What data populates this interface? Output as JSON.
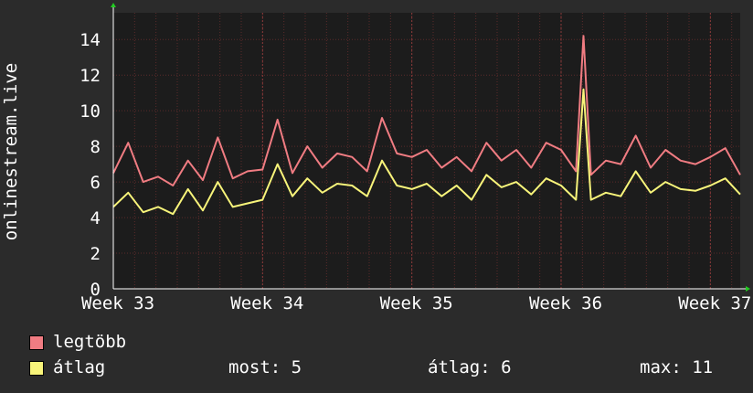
{
  "chart_data": {
    "type": "line",
    "ylabel": "onlinestream.live",
    "ylim": [
      0,
      15.5
    ],
    "yticks": [
      0,
      2,
      4,
      6,
      8,
      10,
      12,
      14
    ],
    "xlim": [
      33,
      37.2
    ],
    "xticks": [
      {
        "label": "Week 33",
        "value": 33
      },
      {
        "label": "Week 34",
        "value": 34
      },
      {
        "label": "Week 35",
        "value": 35
      },
      {
        "label": "Week 36",
        "value": 36
      },
      {
        "label": "Week 37",
        "value": 37
      }
    ],
    "grid": true,
    "background": "#1c1c1c",
    "grid_color": "#5a2a2a",
    "series": [
      {
        "name": "legtöbb",
        "color": "#f07c82",
        "x": [
          33.0,
          33.1,
          33.2,
          33.3,
          33.4,
          33.5,
          33.6,
          33.7,
          33.8,
          33.9,
          34.0,
          34.1,
          34.2,
          34.3,
          34.4,
          34.5,
          34.6,
          34.7,
          34.8,
          34.9,
          35.0,
          35.1,
          35.2,
          35.3,
          35.4,
          35.5,
          35.6,
          35.7,
          35.8,
          35.9,
          36.0,
          36.1,
          36.15,
          36.2,
          36.3,
          36.4,
          36.5,
          36.6,
          36.7,
          36.8,
          36.9,
          37.0,
          37.1,
          37.2
        ],
        "values": [
          6.5,
          8.2,
          6.0,
          6.3,
          5.8,
          7.2,
          6.1,
          8.5,
          6.2,
          6.6,
          6.7,
          9.5,
          6.5,
          8.0,
          6.8,
          7.6,
          7.4,
          6.6,
          9.6,
          7.6,
          7.4,
          7.8,
          6.8,
          7.4,
          6.6,
          8.2,
          7.2,
          7.8,
          6.8,
          8.2,
          7.8,
          6.6,
          14.2,
          6.4,
          7.2,
          7.0,
          8.6,
          6.8,
          7.8,
          7.2,
          7.0,
          7.4,
          7.9,
          6.4
        ]
      },
      {
        "name": "átlag",
        "color": "#f8f47a",
        "x": [
          33.0,
          33.1,
          33.2,
          33.3,
          33.4,
          33.5,
          33.6,
          33.7,
          33.8,
          33.9,
          34.0,
          34.1,
          34.2,
          34.3,
          34.4,
          34.5,
          34.6,
          34.7,
          34.8,
          34.9,
          35.0,
          35.1,
          35.2,
          35.3,
          35.4,
          35.5,
          35.6,
          35.7,
          35.8,
          35.9,
          36.0,
          36.1,
          36.15,
          36.2,
          36.3,
          36.4,
          36.5,
          36.6,
          36.7,
          36.8,
          36.9,
          37.0,
          37.1,
          37.2
        ],
        "values": [
          4.6,
          5.4,
          4.3,
          4.6,
          4.2,
          5.6,
          4.4,
          6.0,
          4.6,
          4.8,
          5.0,
          7.0,
          5.2,
          6.2,
          5.4,
          5.9,
          5.8,
          5.2,
          7.2,
          5.8,
          5.6,
          5.9,
          5.2,
          5.8,
          5.0,
          6.4,
          5.7,
          6.0,
          5.3,
          6.2,
          5.8,
          5.0,
          11.2,
          5.0,
          5.4,
          5.2,
          6.6,
          5.4,
          6.0,
          5.6,
          5.5,
          5.8,
          6.2,
          5.3
        ]
      }
    ]
  },
  "legend": [
    {
      "label": "legtöbb",
      "color": "#f07c82"
    },
    {
      "label": "átlag",
      "color": "#f8f47a"
    }
  ],
  "stats": {
    "most": "most: 5",
    "atlag": "átlag: 6",
    "max": "max: 11"
  }
}
